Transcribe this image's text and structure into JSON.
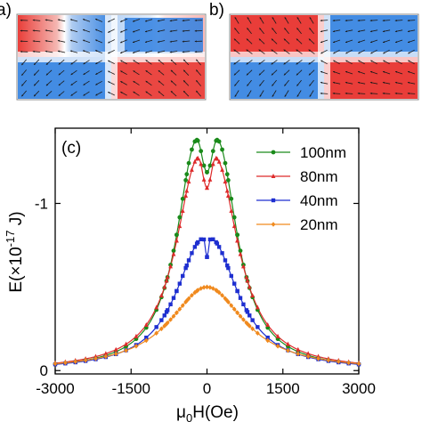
{
  "panels": {
    "a": {
      "label": "a)"
    },
    "b": {
      "label": "b)"
    },
    "c": {
      "label": "(c)"
    }
  },
  "colors": {
    "red": "#e8332e",
    "blue": "#2f7fe0",
    "arrow": "#1a1a1a"
  },
  "chart_data": {
    "type": "line",
    "xlabel": "μ0H(Oe)",
    "ylabel": "E(×10-17 J)",
    "xlim": [
      -3000,
      3000
    ],
    "ylim": [
      0.02,
      -1.45
    ],
    "xticks": [
      -3000,
      -1500,
      0,
      1500,
      3000
    ],
    "xtick_labels": [
      "-3000",
      "-1500",
      "0",
      "1500",
      "3000"
    ],
    "yticks": [
      0,
      -1
    ],
    "ytick_labels": [
      "0",
      "-1"
    ],
    "legend_position": "top-right",
    "series": [
      {
        "name": "100nm",
        "color": "#1a8a1a",
        "marker": "circle",
        "peak": -1.38,
        "peak_at": 200,
        "gamma": 550
      },
      {
        "name": "80nm",
        "color": "#dd2a2a",
        "marker": "triangle",
        "peak": -1.27,
        "peak_at": 170,
        "gamma": 620
      },
      {
        "name": "40nm",
        "color": "#1e2fd0",
        "marker": "square",
        "peak": -0.79,
        "peak_at": 70,
        "gamma": 750
      },
      {
        "name": "20nm",
        "color": "#f08a1e",
        "marker": "diamond",
        "peak": -0.5,
        "peak_at": 0,
        "gamma": 900
      }
    ]
  }
}
